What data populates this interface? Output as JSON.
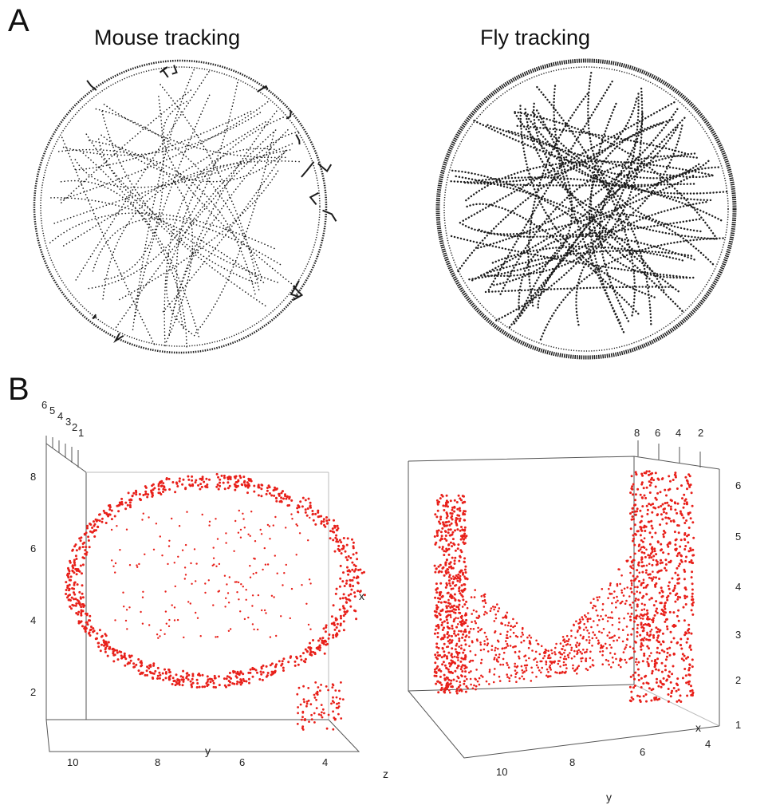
{
  "figure": {
    "panel_a": {
      "letter": "A",
      "left_title": "Mouse tracking",
      "right_title": "Fly tracking"
    },
    "panel_b": {
      "letter": "B",
      "left_plot": {
        "vertical_ticks": [
          "8",
          "6",
          "4",
          "2"
        ],
        "y_ticks": [
          "10",
          "8",
          "6",
          "4"
        ],
        "depth_ticks": [
          "6",
          "5",
          "4",
          "3",
          "2",
          "1"
        ],
        "y_label": "y",
        "x_label": "x",
        "z_label": "z"
      },
      "right_plot": {
        "vertical_ticks": [
          "6",
          "5",
          "4",
          "3",
          "2",
          "1"
        ],
        "y_ticks": [
          "10",
          "8",
          "6",
          "4"
        ],
        "top_ticks": [
          "8",
          "6",
          "4",
          "2"
        ],
        "y_label": "y",
        "x_label": "x"
      }
    },
    "colors": {
      "trajectory": "#1c1c1c",
      "points": "#e8201a",
      "frame": "#555555"
    }
  }
}
